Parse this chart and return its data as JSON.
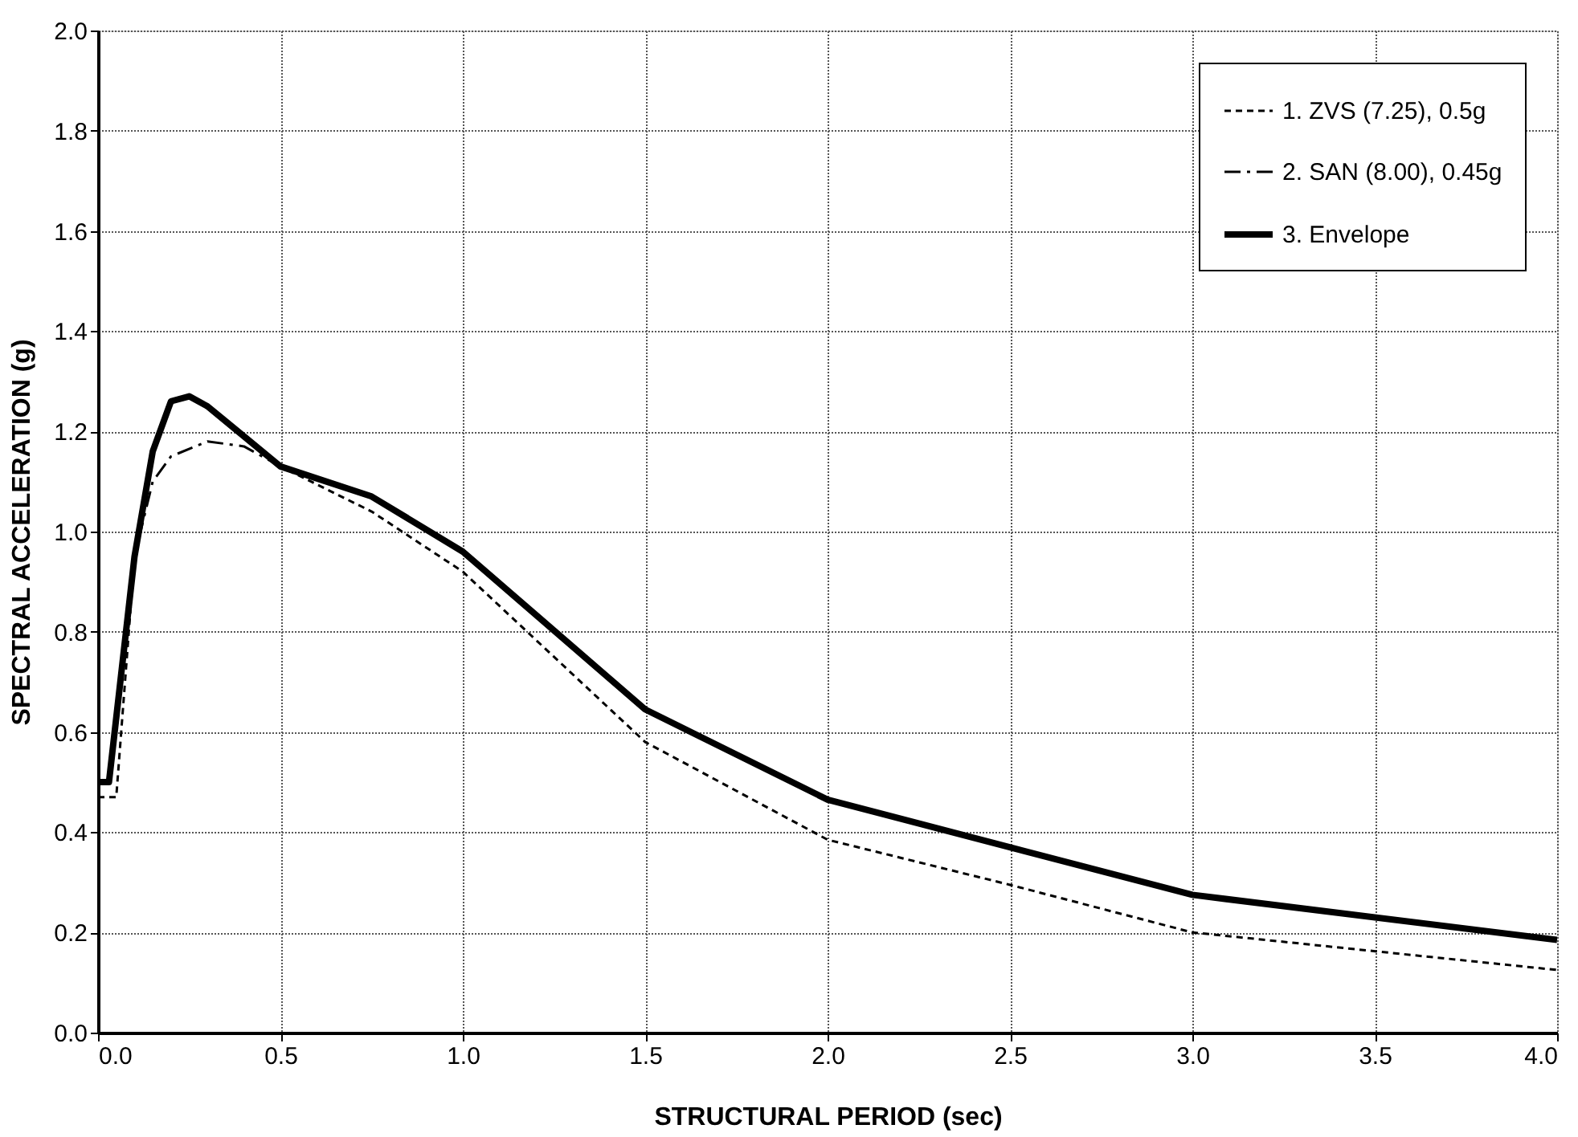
{
  "chart_data": {
    "type": "line",
    "xlabel": "STRUCTURAL PERIOD (sec)",
    "ylabel": "SPECTRAL ACCELERATION (g)",
    "xlim": [
      0,
      4
    ],
    "ylim": [
      0,
      2
    ],
    "xticks": [
      {
        "value": 0,
        "label": "0.0"
      },
      0.5,
      {
        "value": 1,
        "label": "1.0"
      },
      1.5,
      {
        "value": 2,
        "label": "2.0"
      },
      2.5,
      {
        "value": 3,
        "label": "3.0"
      },
      3.5,
      {
        "value": 4,
        "label": "4.0"
      }
    ],
    "yticks": [
      {
        "value": 0,
        "label": "0.0"
      },
      0.2,
      0.4,
      0.6,
      0.8,
      {
        "value": 1,
        "label": "1.0"
      },
      1.2,
      1.4,
      1.6,
      1.8,
      {
        "value": 2,
        "label": "2.0"
      }
    ],
    "grid": true,
    "legend": "top right",
    "series": [
      {
        "name": "1. ZVS (7.25), 0.5g",
        "color": "#000000",
        "line_style": "dashed",
        "x": [
          0,
          0.05,
          0.1,
          0.15,
          0.2,
          0.25,
          0.3,
          0.4,
          0.5,
          0.75,
          1.0,
          1.5,
          2.0,
          2.5,
          3.0,
          4.0
        ],
        "values": [
          0.47,
          0.47,
          0.95,
          1.16,
          1.26,
          1.27,
          1.25,
          1.19,
          1.13,
          1.04,
          0.92,
          0.58,
          0.385,
          0.295,
          0.2,
          0.125
        ]
      },
      {
        "name": "2. SAN (8.00), 0.45g",
        "color": "#000000",
        "line_style": "dashdot",
        "x": [
          0,
          0.03,
          0.1,
          0.15,
          0.2,
          0.3,
          0.4,
          0.5
        ],
        "values": [
          0.5,
          0.5,
          0.95,
          1.1,
          1.15,
          1.18,
          1.17,
          1.13
        ]
      },
      {
        "name": "3. Envelope",
        "color": "#000000",
        "line_style": "solid",
        "x": [
          0,
          0.03,
          0.1,
          0.15,
          0.2,
          0.25,
          0.3,
          0.4,
          0.5,
          0.75,
          1.0,
          1.5,
          2.0,
          3.0,
          4.0
        ],
        "values": [
          0.5,
          0.5,
          0.95,
          1.16,
          1.26,
          1.27,
          1.25,
          1.19,
          1.13,
          1.07,
          0.96,
          0.645,
          0.465,
          0.275,
          0.185
        ]
      }
    ]
  }
}
